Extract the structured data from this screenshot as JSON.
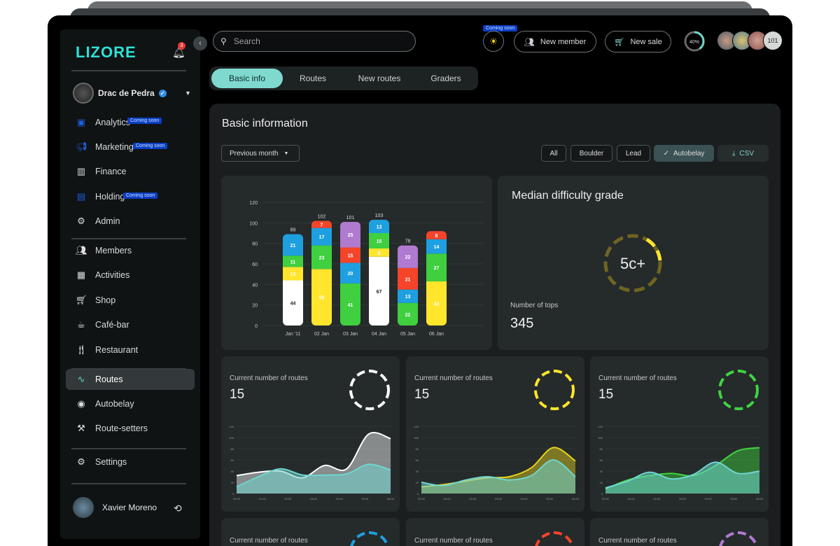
{
  "sidebar": {
    "logo": "LIZORE",
    "notifications": "3",
    "org": "Drac de Pedra",
    "coming_soon": "Coming soon",
    "items": [
      {
        "label": "Analytics",
        "icon": "analytics-icon"
      },
      {
        "label": "Marketing",
        "icon": "megaphone-icon"
      },
      {
        "label": "Finance",
        "icon": "finance-icon"
      },
      {
        "label": "Holding",
        "icon": "building-icon"
      },
      {
        "label": "Admin",
        "icon": "admin-icon"
      },
      {
        "label": "Members",
        "icon": "members-icon"
      },
      {
        "label": "Activities",
        "icon": "calendar-icon"
      },
      {
        "label": "Shop",
        "icon": "cart-icon"
      },
      {
        "label": "Café-bar",
        "icon": "coffee-icon"
      },
      {
        "label": "Restaurant",
        "icon": "cutlery-icon"
      },
      {
        "label": "Routes",
        "icon": "routes-icon"
      },
      {
        "label": "Autobelay",
        "icon": "autobelay-icon"
      },
      {
        "label": "Route-setters",
        "icon": "drill-icon"
      },
      {
        "label": "Settings",
        "icon": "gear-icon"
      }
    ],
    "user": "Xavier Moreno"
  },
  "header": {
    "search_placeholder": "Search",
    "coming_soon": "Coming soon",
    "new_member": "New member",
    "new_sale": "New sale",
    "progress": "40%",
    "progress_value": 40,
    "more_users": "101"
  },
  "tabs": [
    "Basic info",
    "Routes",
    "New routes",
    "Graders"
  ],
  "main": {
    "title": "Basic information",
    "period": "Previous month",
    "filters": [
      "All",
      "Boulder",
      "Lead",
      "Autobelay"
    ],
    "active_filter": "Autobelay",
    "csv": "CSV",
    "median": {
      "title": "Median difficulty grade",
      "grade": "5c+",
      "tops_label": "Number of tops",
      "tops": "345"
    },
    "route_cards": [
      {
        "label": "Current number of routes",
        "value": "15",
        "color": "#ffffff"
      },
      {
        "label": "Current number of routes",
        "value": "15",
        "color": "#ffe52c"
      },
      {
        "label": "Current number of routes",
        "value": "15",
        "color": "#3fd43f"
      },
      {
        "label": "Current number of routes",
        "value": "",
        "color": "#1ea0e0"
      },
      {
        "label": "Current number of routes",
        "value": "",
        "color": "#f4442a"
      },
      {
        "label": "Current number of routes",
        "value": "",
        "color": "#b07ad0"
      }
    ]
  },
  "chart_data": [
    {
      "type": "bar",
      "stacked": true,
      "categories": [
        "Jan '11",
        "02 Jan",
        "03 Jan",
        "04 Jan",
        "05 Jan",
        "06 Jan"
      ],
      "ylim": [
        0,
        120
      ],
      "yticks": [
        0,
        20,
        40,
        60,
        80,
        100,
        120
      ],
      "series": [
        {
          "name": "white",
          "color": "#ffffff",
          "values": [
            44,
            0,
            0,
            67,
            0,
            0
          ]
        },
        {
          "name": "yellow",
          "color": "#ffe52c",
          "values": [
            13,
            55,
            0,
            8,
            0,
            43
          ]
        },
        {
          "name": "green",
          "color": "#3fcf3f",
          "values": [
            11,
            23,
            41,
            15,
            22,
            27
          ]
        },
        {
          "name": "blue",
          "color": "#1ea0e0",
          "values": [
            21,
            17,
            20,
            13,
            13,
            14
          ]
        },
        {
          "name": "red",
          "color": "#f4442a",
          "values": [
            0,
            7,
            15,
            0,
            21,
            8
          ]
        },
        {
          "name": "purple",
          "color": "#b07ad0",
          "values": [
            0,
            0,
            25,
            0,
            22,
            0
          ]
        }
      ],
      "totals": [
        "89",
        "102",
        "101",
        "103",
        "78",
        ""
      ]
    },
    {
      "type": "area",
      "x": [
        "00:00",
        "01:00",
        "02:00",
        "03:00",
        "04:00",
        "05:00",
        "06:00"
      ],
      "ylim": [
        0,
        120
      ],
      "yticks": [
        "0",
        "20",
        "40",
        "60",
        "80",
        "100",
        "120"
      ],
      "cards": [
        {
          "series": [
            {
              "name": "main",
              "color": "#ffffff",
              "values": [
                32,
                38,
                40,
                28,
                50,
                44,
                106,
                98
              ]
            },
            {
              "name": "secondary",
              "color": "#6fd6cf",
              "values": [
                12,
                30,
                44,
                33,
                33,
                35,
                52,
                42
              ]
            }
          ]
        },
        {
          "series": [
            {
              "name": "main",
              "color": "#e6d21e",
              "values": [
                12,
                16,
                22,
                28,
                30,
                46,
                82,
                58
              ]
            },
            {
              "name": "secondary",
              "color": "#6fd6cf",
              "values": [
                20,
                14,
                24,
                30,
                24,
                32,
                60,
                30
              ]
            }
          ]
        },
        {
          "series": [
            {
              "name": "main",
              "color": "#3fd43f",
              "values": [
                8,
                24,
                32,
                36,
                32,
                50,
                76,
                82
              ]
            },
            {
              "name": "secondary",
              "color": "#6fd6cf",
              "values": [
                10,
                22,
                38,
                26,
                34,
                56,
                36,
                40
              ]
            }
          ]
        }
      ]
    }
  ]
}
